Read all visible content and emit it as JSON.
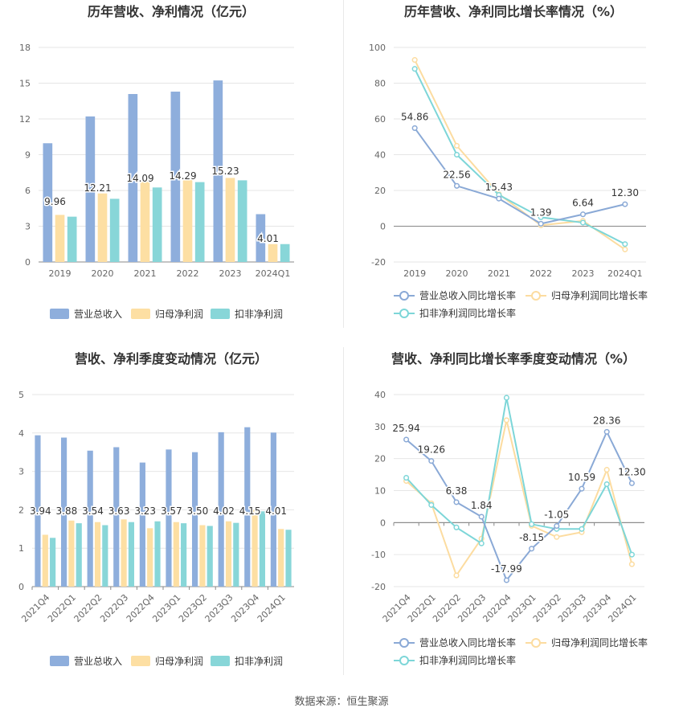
{
  "source": "数据来源：恒生聚源",
  "colors": {
    "series1": "#8eaedc",
    "series2": "#fddfa3",
    "series3": "#88d6d8",
    "line1": "#8aa9d6",
    "line2": "#fcdca0",
    "line3": "#7dd6d8",
    "grid": "#e6e6e6",
    "axis": "#666666"
  },
  "chart_data": [
    {
      "id": "annual_revenue_profit",
      "type": "bar",
      "title": "历年营收、净利情况（亿元）",
      "categories": [
        "2019",
        "2020",
        "2021",
        "2022",
        "2023",
        "2024Q1"
      ],
      "yticks": [
        0,
        3,
        6,
        9,
        12,
        15,
        18
      ],
      "ylim": [
        0,
        18
      ],
      "series": [
        {
          "name": "营业总收入",
          "values": [
            9.96,
            12.21,
            14.09,
            14.29,
            15.23,
            4.01
          ]
        },
        {
          "name": "归母净利润",
          "values": [
            3.95,
            5.75,
            6.8,
            6.9,
            7.05,
            1.5
          ]
        },
        {
          "name": "扣非净利润",
          "values": [
            3.8,
            5.3,
            6.25,
            6.7,
            6.85,
            1.5
          ]
        }
      ],
      "labels": [
        "9.96",
        "12.21",
        "14.09",
        "14.29",
        "15.23",
        "4.01"
      ]
    },
    {
      "id": "annual_growth",
      "type": "line",
      "title": "历年营收、净利同比增长率情况（%）",
      "categories": [
        "2019",
        "2020",
        "2021",
        "2022",
        "2023",
        "2024Q1"
      ],
      "yticks": [
        -20,
        0,
        20,
        40,
        60,
        80,
        100
      ],
      "ylim": [
        -20,
        100
      ],
      "series": [
        {
          "name": "营业总收入同比增长率",
          "values": [
            54.86,
            22.56,
            15.43,
            1.39,
            6.64,
            12.3
          ]
        },
        {
          "name": "归母净利润同比增长率",
          "values": [
            93,
            45,
            18,
            0.5,
            3,
            -13
          ]
        },
        {
          "name": "扣非净利润同比增长率",
          "values": [
            88,
            40,
            17.5,
            5,
            2,
            -10
          ]
        }
      ],
      "labels": [
        "54.86",
        "22.56",
        "15.43",
        "1.39",
        "6.64",
        "12.30"
      ]
    },
    {
      "id": "quarterly_revenue_profit",
      "type": "bar",
      "title": "营收、净利季度变动情况（亿元）",
      "categories": [
        "2021Q4",
        "2022Q1",
        "2022Q2",
        "2022Q3",
        "2022Q4",
        "2023Q1",
        "2023Q2",
        "2023Q3",
        "2023Q4",
        "2024Q1"
      ],
      "yticks": [
        0,
        1,
        2,
        3,
        4,
        5
      ],
      "ylim": [
        0,
        5
      ],
      "series": [
        {
          "name": "营业总收入",
          "values": [
            3.94,
            3.88,
            3.54,
            3.63,
            3.23,
            3.57,
            3.5,
            4.02,
            4.15,
            4.01
          ]
        },
        {
          "name": "归母净利润",
          "values": [
            1.35,
            1.72,
            1.68,
            1.75,
            1.52,
            1.68,
            1.6,
            1.7,
            2.0,
            1.5
          ]
        },
        {
          "name": "扣非净利润",
          "values": [
            1.27,
            1.65,
            1.6,
            1.68,
            1.7,
            1.65,
            1.58,
            1.66,
            1.96,
            1.48
          ]
        }
      ],
      "labels": [
        "3.94",
        "3.88",
        "3.54",
        "3.63",
        "3.23",
        "3.57",
        "3.50",
        "4.02",
        "4.15",
        "4.01"
      ]
    },
    {
      "id": "quarterly_growth",
      "type": "line",
      "title": "营收、净利同比增长率季度变动情况（%）",
      "categories": [
        "2021Q4",
        "2022Q1",
        "2022Q2",
        "2022Q3",
        "2022Q4",
        "2023Q1",
        "2023Q2",
        "2023Q3",
        "2023Q4",
        "2024Q1"
      ],
      "yticks": [
        -20,
        -10,
        0,
        10,
        20,
        30,
        40
      ],
      "ylim": [
        -20,
        40
      ],
      "series": [
        {
          "name": "营业总收入同比增长率",
          "values": [
            25.94,
            19.26,
            6.38,
            1.84,
            -17.99,
            -8.15,
            -1.05,
            10.59,
            28.36,
            12.3
          ]
        },
        {
          "name": "归母净利润同比增长率",
          "values": [
            13,
            6,
            -16.5,
            -5,
            32,
            -1,
            -4.5,
            -3,
            16.5,
            -13
          ]
        },
        {
          "name": "扣非净利润同比增长率",
          "values": [
            14,
            5.5,
            -1.5,
            -6.5,
            39,
            -0.5,
            -2,
            -2,
            12,
            -10
          ]
        }
      ],
      "labels": [
        "25.94",
        "19.26",
        "6.38",
        "1.84",
        "-17.99",
        "-8.15",
        "-1.05",
        "10.59",
        "28.36",
        "12.30"
      ]
    }
  ]
}
